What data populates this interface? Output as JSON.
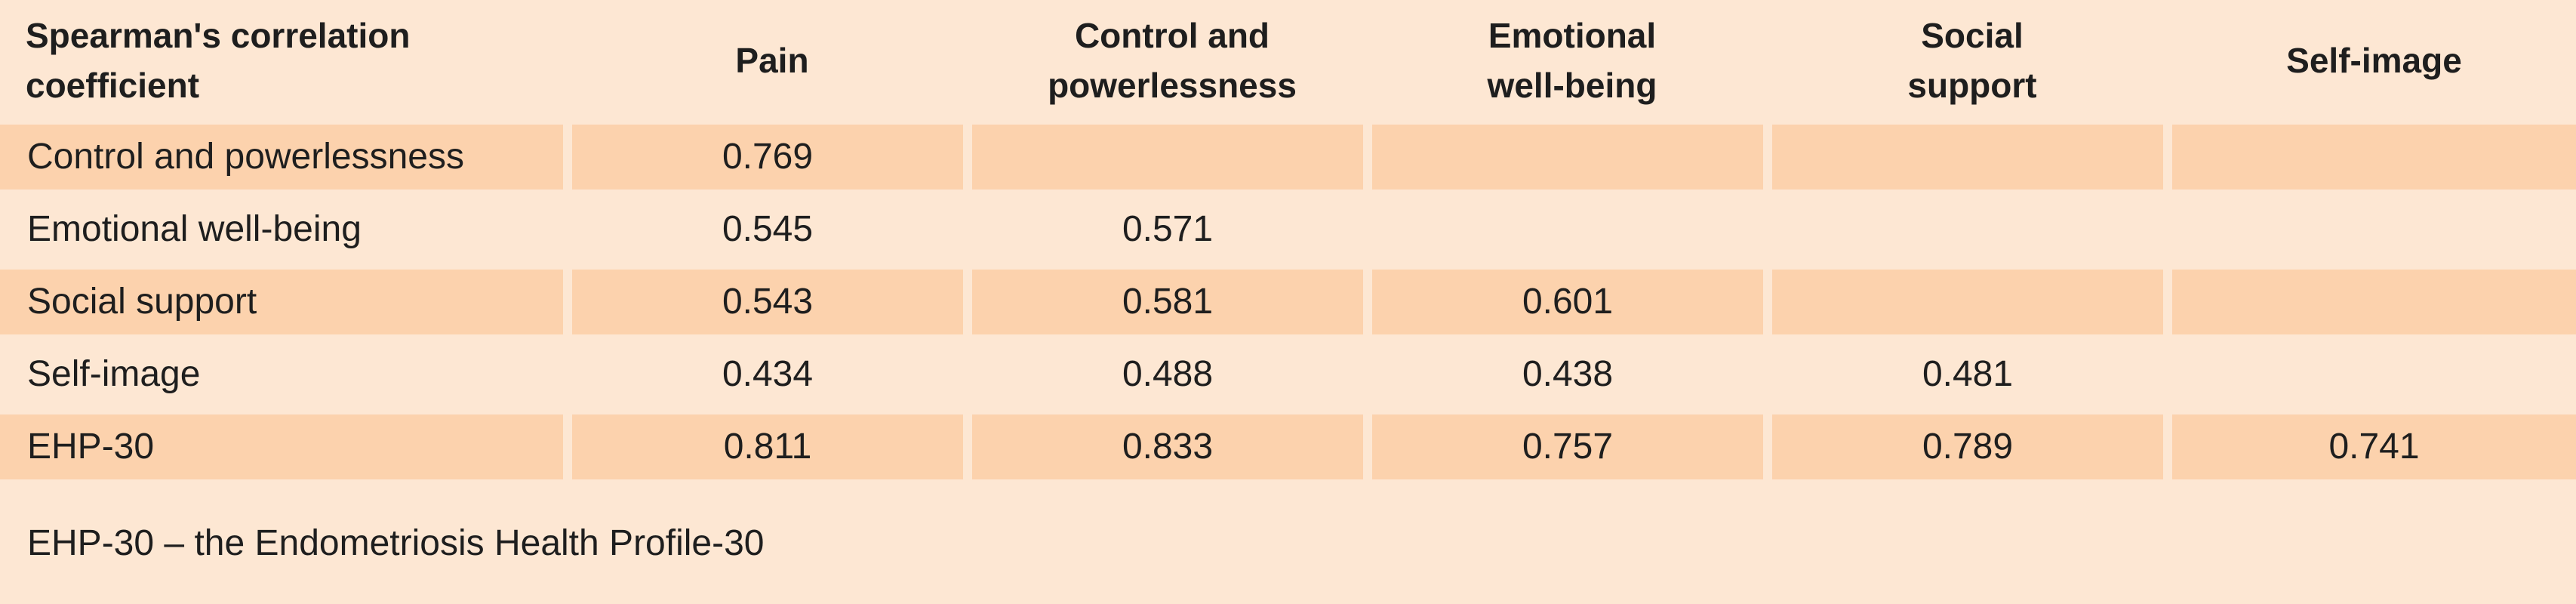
{
  "table": {
    "headers": [
      [
        "Spearman's correlation",
        "coefficient"
      ],
      [
        "Pain"
      ],
      [
        "Control and",
        "powerlessness"
      ],
      [
        "Emotional",
        "well-being"
      ],
      [
        "Social",
        "support"
      ],
      [
        "Self-image"
      ]
    ],
    "rows": [
      {
        "label": "Control and powerlessness",
        "values": [
          "0.769",
          "",
          "",
          "",
          ""
        ],
        "shaded": true
      },
      {
        "label": "Emotional well-being",
        "values": [
          "0.545",
          "0.571",
          "",
          "",
          ""
        ],
        "shaded": false
      },
      {
        "label": "Social support",
        "values": [
          "0.543",
          "0.581",
          "0.601",
          "",
          ""
        ],
        "shaded": true
      },
      {
        "label": "Self-image",
        "values": [
          "0.434",
          "0.488",
          "0.438",
          "0.481",
          ""
        ],
        "shaded": false
      },
      {
        "label": "EHP-30",
        "values": [
          "0.811",
          "0.833",
          "0.757",
          "0.789",
          "0.741"
        ],
        "shaded": true
      }
    ],
    "footnote": "EHP-30 – the Endometriosis Health Profile-30"
  },
  "colors": {
    "background": "#fde7d3",
    "shaded_row": "#fcd2ad",
    "text": "#1e1e1e"
  }
}
